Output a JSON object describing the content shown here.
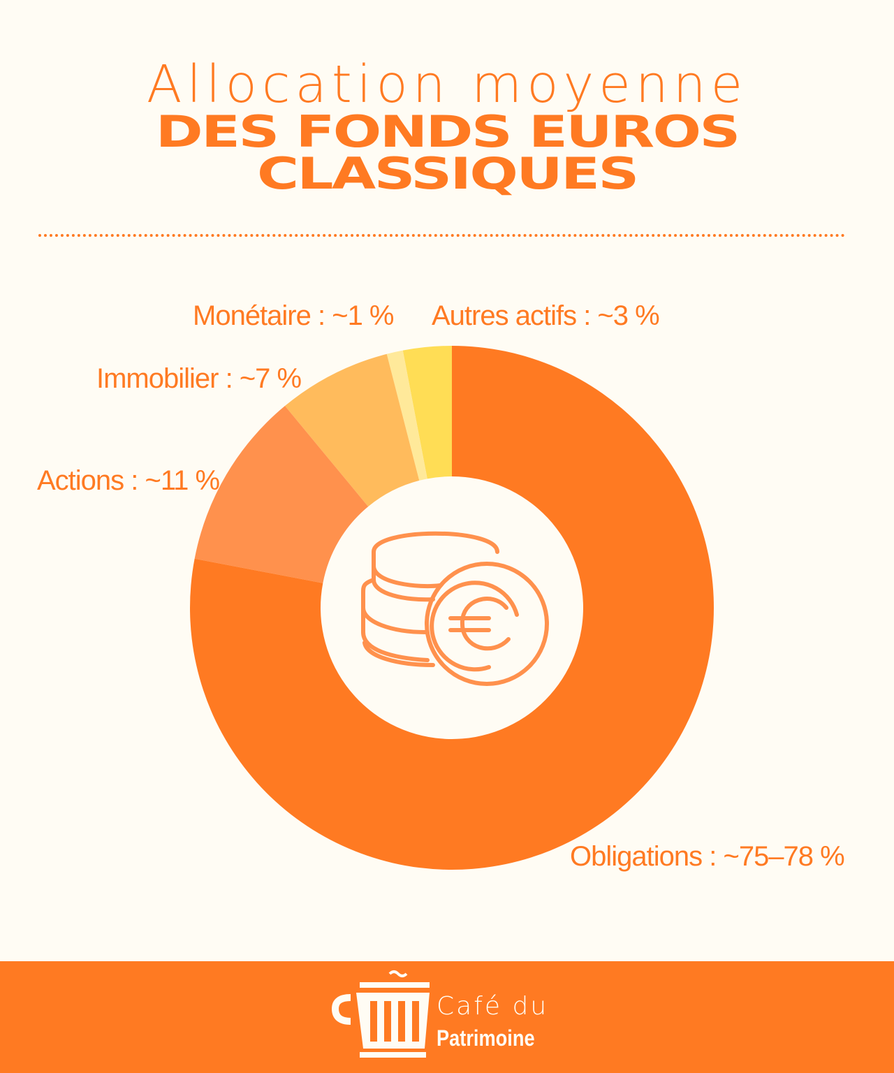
{
  "chart_data": {
    "type": "pie",
    "title_line1": "Allocation moyenne",
    "title_line2": "DES FONDS EUROS",
    "title_line3": "CLASSIQUES",
    "slices": [
      {
        "name": "Autres actifs",
        "value": 3,
        "label": "Autres actifs : ~3 %",
        "color": "#FFDD55"
      },
      {
        "name": "Monétaire",
        "value": 1,
        "label": "Monétaire : ~1 %",
        "color": "#FFE99A"
      },
      {
        "name": "Immobilier",
        "value": 7,
        "label": "Immobilier : ~7 %",
        "color": "#FFBB5C"
      },
      {
        "name": "Actions",
        "value": 11,
        "label": "Actions : ~11 %",
        "color": "#FF914D"
      },
      {
        "name": "Obligations",
        "value": 78,
        "label": "Obligations : ~75–78 %",
        "color": "#FF7A22"
      }
    ],
    "direction": "counterclockwise from top",
    "donut": true,
    "center_icon": "euro-coins-icon"
  },
  "footer": {
    "brand_line1": "Café du",
    "brand_line2": "Patrimoine",
    "logo_icon": "coffee-cup-icon",
    "background": "#FF7A22"
  }
}
